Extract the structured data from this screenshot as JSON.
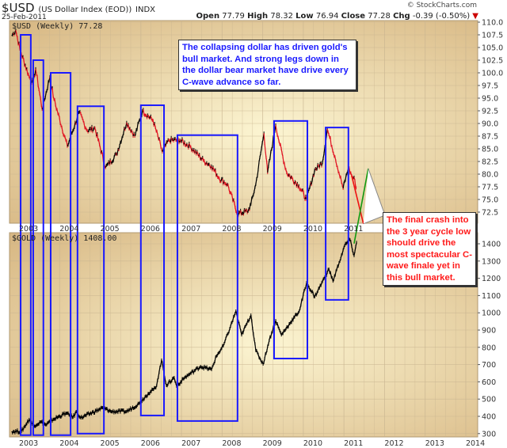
{
  "header": {
    "symbol": "$USD",
    "name": "(US Dollar Index (EOD))",
    "exchange": "INDX",
    "date": "25-Feb-2011",
    "source": "© StockCharts.com",
    "open_label": "Open",
    "open": "77.79",
    "high_label": "High",
    "high": "78.32",
    "low_label": "Low",
    "low": "76.94",
    "close_label": "Close",
    "close": "77.28",
    "chg_label": "Chg",
    "chg": "-0.39 (-0.50%)",
    "chg_icon": "down-triangle-icon"
  },
  "colors": {
    "box": "#1a1aff",
    "up": "#000000",
    "down": "#e01020",
    "projection_down": "#ee1111",
    "projection_up": "#119911",
    "callout": "#888888",
    "bg_edge": "#d8b884",
    "bg_center": "#fcf5d2"
  },
  "chart_data": [
    {
      "type": "line",
      "panel": "top",
      "title": "$USD (Weekly) 77.28",
      "x_unit": "year",
      "xlim": [
        2002.77,
        2014.3
      ],
      "ylim": [
        69.3,
        111.3
      ],
      "yticks": [
        "110.0",
        "107.5",
        "105.0",
        "102.5",
        "100.0",
        "97.5",
        "95.0",
        "92.5",
        "90.0",
        "87.5",
        "85.0",
        "82.5",
        "80.0",
        "77.5",
        "75.0",
        "72.5"
      ],
      "xticks": [
        "2003",
        "2004",
        "2005",
        "2006",
        "2007",
        "2008",
        "2009",
        "2010",
        "2011",
        "2012",
        "2013",
        "2014"
      ],
      "grid": true,
      "series": [
        {
          "name": "$USD",
          "points": [
            [
              2002.82,
              107.3
            ],
            [
              2002.92,
              108.4
            ],
            [
              2003.02,
              104.7
            ],
            [
              2003.25,
              99.2
            ],
            [
              2003.35,
              98.0
            ],
            [
              2003.41,
              100.8
            ],
            [
              2003.57,
              92.8
            ],
            [
              2003.76,
              99.2
            ],
            [
              2003.86,
              94.8
            ],
            [
              2004.19,
              85.5
            ],
            [
              2004.48,
              92.2
            ],
            [
              2004.68,
              88.6
            ],
            [
              2004.87,
              89.1
            ],
            [
              2005.13,
              81.3
            ],
            [
              2005.4,
              83.9
            ],
            [
              2005.65,
              90.2
            ],
            [
              2005.85,
              87.5
            ],
            [
              2006.04,
              92.5
            ],
            [
              2006.3,
              90.6
            ],
            [
              2006.53,
              84.4
            ],
            [
              2006.69,
              86.7
            ],
            [
              2006.96,
              86.7
            ],
            [
              2007.21,
              85.5
            ],
            [
              2007.54,
              82.7
            ],
            [
              2007.74,
              81.6
            ],
            [
              2007.93,
              79.2
            ],
            [
              2008.13,
              78.0
            ],
            [
              2008.38,
              72.2
            ],
            [
              2008.64,
              72.7
            ],
            [
              2008.71,
              74.1
            ],
            [
              2008.83,
              78.0
            ],
            [
              2009.03,
              88.1
            ],
            [
              2009.12,
              80.3
            ],
            [
              2009.32,
              89.7
            ],
            [
              2009.42,
              85.9
            ],
            [
              2009.59,
              80.3
            ],
            [
              2009.89,
              77.7
            ],
            [
              2010.08,
              75.0
            ],
            [
              2010.28,
              80.8
            ],
            [
              2010.47,
              82.3
            ],
            [
              2010.59,
              88.9
            ],
            [
              2010.78,
              83.4
            ],
            [
              2010.98,
              77.2
            ],
            [
              2011.11,
              81.3
            ],
            [
              2011.19,
              79.7
            ],
            [
              2011.27,
              78.75
            ],
            [
              2011.3,
              77.28
            ]
          ]
        }
      ],
      "projections": [
        {
          "color": "projection_down",
          "from": [
            2011.19,
            79.7
          ],
          "to": [
            2011.48,
            70.2
          ]
        },
        {
          "color": "projection_up",
          "from": [
            2011.25,
            66.3
          ],
          "to": [
            2011.6,
            81.1
          ]
        }
      ]
    },
    {
      "type": "line",
      "panel": "bottom",
      "title": "$GOLD (Weekly) 1408.00",
      "x_unit": "year",
      "xlim": [
        2002.77,
        2014.3
      ],
      "ylim": [
        285,
        1450
      ],
      "yticks": [
        "1400",
        "1300",
        "1200",
        "1100",
        "1000",
        "900",
        "800",
        "700",
        "600",
        "500",
        "400",
        "300"
      ],
      "xticks": [
        "2003",
        "2004",
        "2005",
        "2006",
        "2007",
        "2008",
        "2009",
        "2010",
        "2011",
        "2012",
        "2013",
        "2014"
      ],
      "grid": true,
      "series": [
        {
          "name": "$GOLD",
          "points": [
            [
              2002.82,
              313
            ],
            [
              2003.06,
              313
            ],
            [
              2003.25,
              382
            ],
            [
              2003.35,
              345
            ],
            [
              2003.55,
              368
            ],
            [
              2003.66,
              350
            ],
            [
              2003.84,
              382
            ],
            [
              2004.15,
              418
            ],
            [
              2004.33,
              395
            ],
            [
              2004.42,
              428
            ],
            [
              2004.52,
              391
            ],
            [
              2005.07,
              450
            ],
            [
              2005.26,
              428
            ],
            [
              2005.65,
              428
            ],
            [
              2005.95,
              473
            ],
            [
              2006.18,
              533
            ],
            [
              2006.37,
              565
            ],
            [
              2006.51,
              726
            ],
            [
              2006.63,
              579
            ],
            [
              2006.82,
              625
            ],
            [
              2006.88,
              574
            ],
            [
              2007.08,
              625
            ],
            [
              2007.47,
              689
            ],
            [
              2007.74,
              671
            ],
            [
              2007.86,
              749
            ],
            [
              2008.03,
              808
            ],
            [
              2008.19,
              909
            ],
            [
              2008.34,
              1010
            ],
            [
              2008.48,
              872
            ],
            [
              2008.71,
              987
            ],
            [
              2008.83,
              781
            ],
            [
              2009.01,
              703
            ],
            [
              2009.16,
              840
            ],
            [
              2009.32,
              955
            ],
            [
              2009.46,
              872
            ],
            [
              2009.69,
              946
            ],
            [
              2009.9,
              1010
            ],
            [
              2010.08,
              1175
            ],
            [
              2010.28,
              1093
            ],
            [
              2010.53,
              1207
            ],
            [
              2010.63,
              1253
            ],
            [
              2010.73,
              1184
            ],
            [
              2010.88,
              1290
            ],
            [
              2011.02,
              1391
            ],
            [
              2011.15,
              1423
            ],
            [
              2011.25,
              1331
            ],
            [
              2011.31,
              1408
            ]
          ]
        }
      ]
    }
  ],
  "boxes": [
    {
      "start": 2003.04,
      "end": 2003.29,
      "usd_top": 107.5,
      "gold_bottom": 291
    },
    {
      "start": 2003.35,
      "end": 2003.6,
      "usd_top": 102.5,
      "gold_bottom": 291
    },
    {
      "start": 2003.78,
      "end": 2004.27,
      "usd_top": 100.0,
      "gold_bottom": 291
    },
    {
      "start": 2004.44,
      "end": 2005.09,
      "usd_top": 93.4,
      "gold_bottom": 300
    },
    {
      "start": 2006.0,
      "end": 2006.57,
      "usd_top": 93.6,
      "gold_bottom": 405
    },
    {
      "start": 2006.9,
      "end": 2008.38,
      "usd_top": 87.7,
      "gold_bottom": 373
    },
    {
      "start": 2009.28,
      "end": 2010.1,
      "usd_top": 90.5,
      "gold_bottom": 735
    },
    {
      "start": 2010.55,
      "end": 2011.11,
      "usd_top": 89.2,
      "gold_bottom": 1075
    }
  ],
  "annotations": {
    "blue_note": "The collapsing dollar has driven gold's bull market. And strong legs down in the dollar bear market have drive every C-wave advance so far.",
    "red_note": "The final crash into the 3 year cycle low should drive the most spectacular C-wave finale yet in this bull market."
  }
}
